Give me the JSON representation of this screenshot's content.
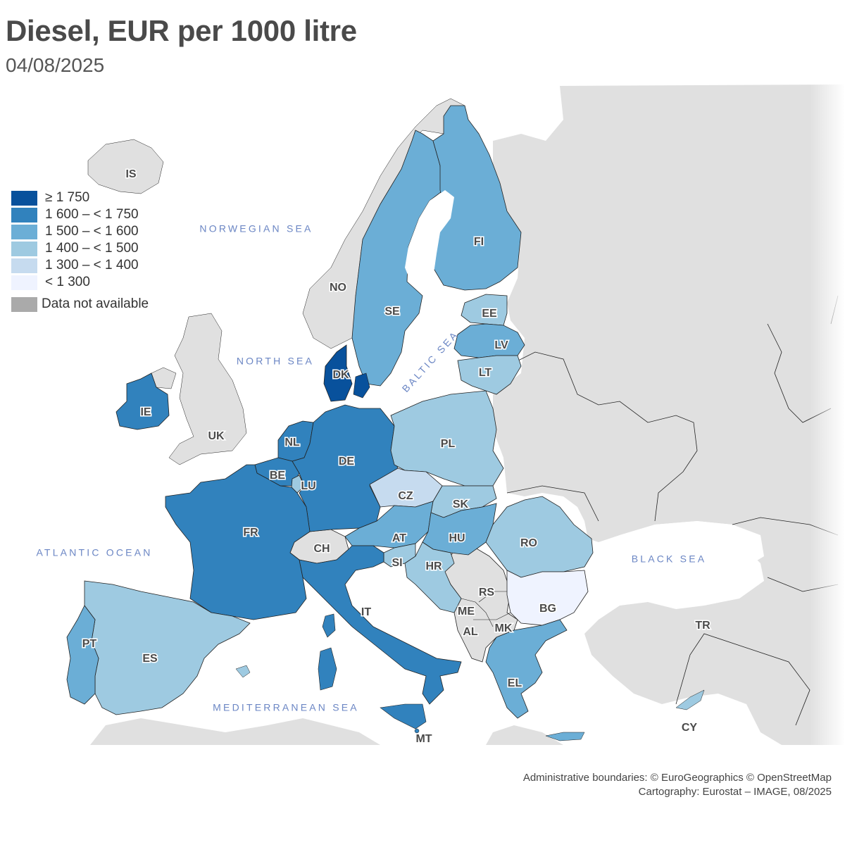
{
  "title": "Diesel, EUR per 1000 litre",
  "subtitle": "04/08/2025",
  "legend": [
    {
      "label": "≥ 1 750",
      "color": "#08519c"
    },
    {
      "label": "1 600 – < 1 750",
      "color": "#3182bd"
    },
    {
      "label": "1 500 – < 1 600",
      "color": "#6baed6"
    },
    {
      "label": "1 400 – < 1 500",
      "color": "#9ecae1"
    },
    {
      "label": "1 300 – < 1 400",
      "color": "#c6dbef"
    },
    {
      "label": "< 1 300",
      "color": "#eff3ff"
    }
  ],
  "legend_na": {
    "label": "Data not available",
    "color": "#aaaaaa"
  },
  "colors": {
    "non_eu": "#e0e0e0",
    "sea": "#ffffff",
    "border": "#222222"
  },
  "seas": {
    "norwegian": "NORWEGIAN SEA",
    "north": "NORTH SEA",
    "baltic": "BALTIC SEA",
    "atlantic": "ATLANTIC OCEAN",
    "black": "BLACK SEA",
    "mediterranean": "MEDITERRANEAN SEA"
  },
  "countries": {
    "IS": {
      "label": "IS",
      "class": "na"
    },
    "NO": {
      "label": "NO",
      "class": "na"
    },
    "UK": {
      "label": "UK",
      "class": "na"
    },
    "SE": {
      "label": "SE",
      "class": 2
    },
    "FI": {
      "label": "FI",
      "class": 2
    },
    "EE": {
      "label": "EE",
      "class": 3
    },
    "LV": {
      "label": "LV",
      "class": 2
    },
    "LT": {
      "label": "LT",
      "class": 3
    },
    "DK": {
      "label": "DK",
      "class": 0
    },
    "IE": {
      "label": "IE",
      "class": 1
    },
    "NL": {
      "label": "NL",
      "class": 1
    },
    "BE": {
      "label": "BE",
      "class": 1
    },
    "LU": {
      "label": "LU",
      "class": 3
    },
    "DE": {
      "label": "DE",
      "class": 1
    },
    "PL": {
      "label": "PL",
      "class": 3
    },
    "CZ": {
      "label": "CZ",
      "class": 4
    },
    "SK": {
      "label": "SK",
      "class": 3
    },
    "FR": {
      "label": "FR",
      "class": 1
    },
    "CH": {
      "label": "CH",
      "class": "na"
    },
    "AT": {
      "label": "AT",
      "class": 2
    },
    "HU": {
      "label": "HU",
      "class": 2
    },
    "RO": {
      "label": "RO",
      "class": 3
    },
    "SI": {
      "label": "SI",
      "class": 3
    },
    "HR": {
      "label": "HR",
      "class": 3
    },
    "IT": {
      "label": "IT",
      "class": 1
    },
    "RS": {
      "label": "RS",
      "class": "na"
    },
    "ME": {
      "label": "ME",
      "class": "na"
    },
    "AL": {
      "label": "AL",
      "class": "na"
    },
    "MK": {
      "label": "MK",
      "class": "na"
    },
    "BG": {
      "label": "BG",
      "class": 5
    },
    "EL": {
      "label": "EL",
      "class": 2
    },
    "TR": {
      "label": "TR",
      "class": "na"
    },
    "CY": {
      "label": "CY",
      "class": 3
    },
    "PT": {
      "label": "PT",
      "class": 2
    },
    "ES": {
      "label": "ES",
      "class": 3
    },
    "MT": {
      "label": "MT",
      "class": 1
    }
  },
  "credits": {
    "line1": "Administrative boundaries: © EuroGeographics © OpenStreetMap",
    "line2": "Cartography: Eurostat – IMAGE, 08/2025"
  }
}
